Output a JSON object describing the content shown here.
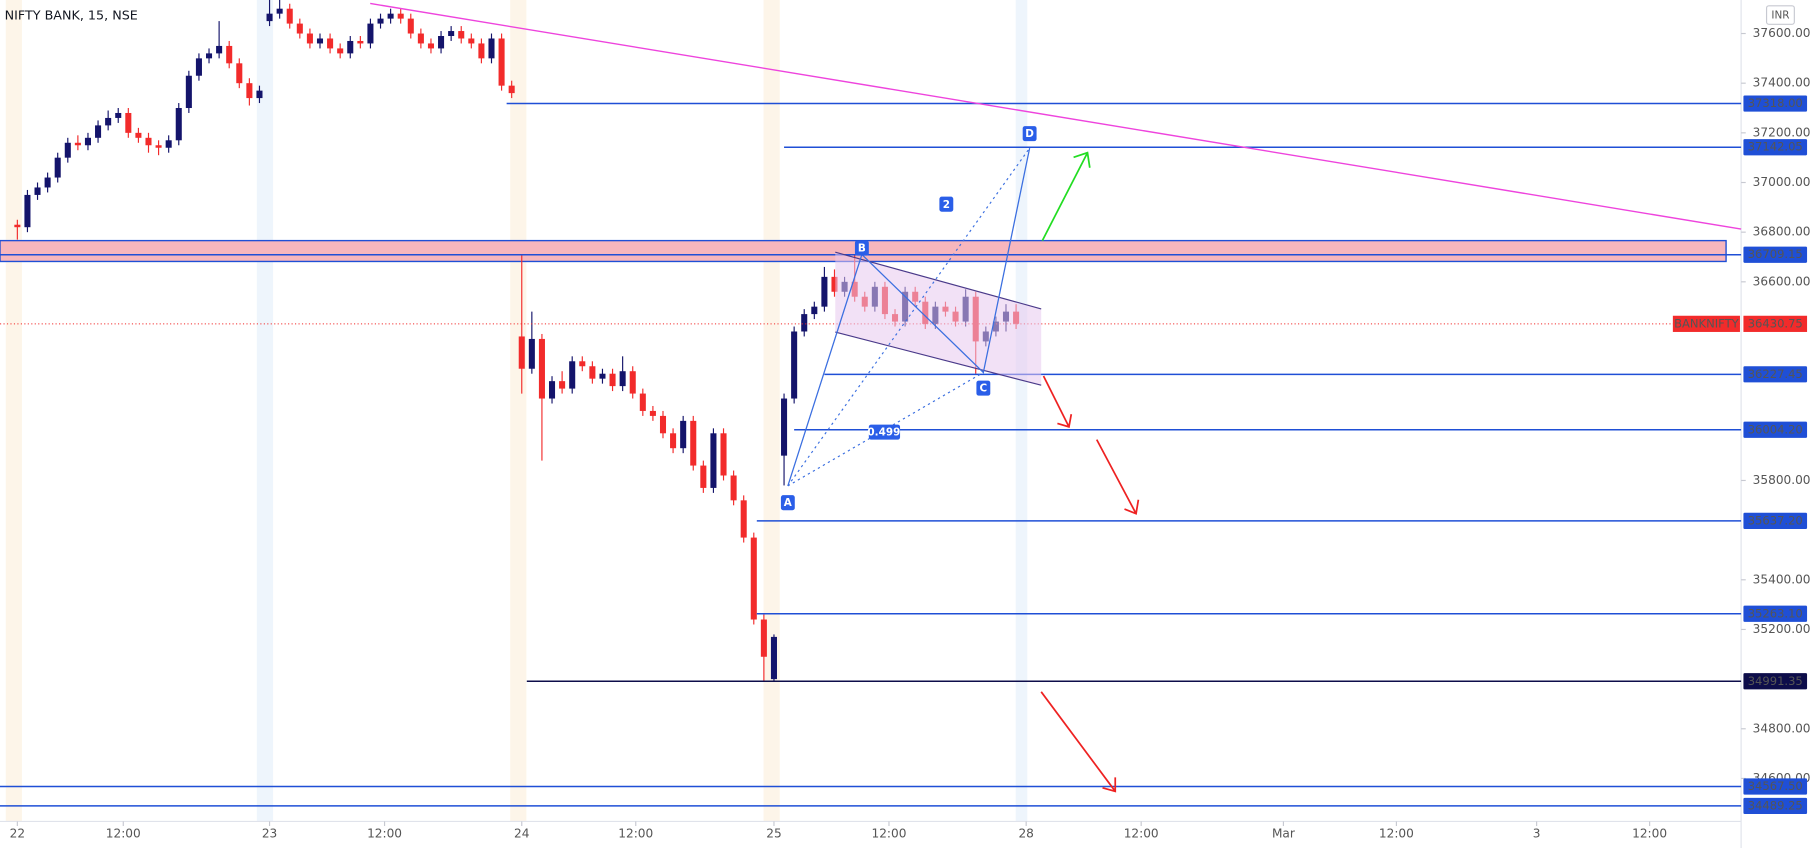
{
  "chart_data": {
    "type": "candlestick",
    "title": "NIFTY BANK, 15, NSE",
    "currency": "INR",
    "up_color": "#14146b",
    "down_color": "#f22b2b",
    "xlim": [
      -1.72,
      170.87
    ],
    "ylim": [
      34427,
      37735
    ],
    "xticks": [
      {
        "value": 0,
        "label": "22"
      },
      {
        "value": 10.5,
        "label": "12:00"
      },
      {
        "value": 25,
        "label": "23"
      },
      {
        "value": 36.4,
        "label": "12:00"
      },
      {
        "value": 50,
        "label": "24"
      },
      {
        "value": 61.3,
        "label": "12:00"
      },
      {
        "value": 75,
        "label": "25"
      },
      {
        "value": 86.4,
        "label": "12:00"
      },
      {
        "value": 100,
        "label": "28"
      },
      {
        "value": 111.4,
        "label": "12:00"
      },
      {
        "value": 125.5,
        "label": "Mar"
      },
      {
        "value": 136.7,
        "label": "12:00"
      },
      {
        "value": 150.6,
        "label": "3"
      },
      {
        "value": 161.8,
        "label": "12:00"
      }
    ],
    "yticks": [
      {
        "value": 37600,
        "label": "37600.00"
      },
      {
        "value": 37400,
        "label": "37400.00"
      },
      {
        "value": 37200,
        "label": "37200.00"
      },
      {
        "value": 37000,
        "label": "37000.00"
      },
      {
        "value": 36800,
        "label": "36800.00"
      },
      {
        "value": 36600,
        "label": "36600.00"
      },
      {
        "value": 35800,
        "label": "35800.00"
      },
      {
        "value": 35400,
        "label": "35400.00"
      },
      {
        "value": 35200,
        "label": "35200.00"
      },
      {
        "value": 34800,
        "label": "34800.00"
      },
      {
        "value": 34600,
        "label": "34600.00"
      }
    ],
    "ohlc": [
      [
        36830,
        36850,
        36770,
        36820
      ],
      [
        36820,
        36970,
        36800,
        36950
      ],
      [
        36950,
        37000,
        36930,
        36980
      ],
      [
        36980,
        37040,
        36960,
        37020
      ],
      [
        37020,
        37120,
        37000,
        37100
      ],
      [
        37100,
        37180,
        37080,
        37160
      ],
      [
        37160,
        37190,
        37130,
        37150
      ],
      [
        37150,
        37200,
        37130,
        37180
      ],
      [
        37180,
        37250,
        37160,
        37230
      ],
      [
        37230,
        37290,
        37210,
        37260
      ],
      [
        37260,
        37300,
        37240,
        37280
      ],
      [
        37280,
        37300,
        37180,
        37200
      ],
      [
        37200,
        37220,
        37160,
        37180
      ],
      [
        37180,
        37200,
        37120,
        37150
      ],
      [
        37150,
        37170,
        37110,
        37140
      ],
      [
        37140,
        37190,
        37120,
        37170
      ],
      [
        37170,
        37320,
        37150,
        37300
      ],
      [
        37300,
        37450,
        37280,
        37430
      ],
      [
        37430,
        37520,
        37410,
        37500
      ],
      [
        37500,
        37540,
        37480,
        37520
      ],
      [
        37520,
        37650,
        37500,
        37550
      ],
      [
        37550,
        37570,
        37460,
        37480
      ],
      [
        37480,
        37500,
        37380,
        37400
      ],
      [
        37400,
        37420,
        37310,
        37340
      ],
      [
        37340,
        37390,
        37320,
        37370
      ],
      [
        37650,
        37740,
        37630,
        37680
      ],
      [
        37680,
        37740,
        37660,
        37700
      ],
      [
        37700,
        37720,
        37620,
        37640
      ],
      [
        37640,
        37660,
        37580,
        37600
      ],
      [
        37600,
        37620,
        37540,
        37560
      ],
      [
        37560,
        37600,
        37540,
        37580
      ],
      [
        37580,
        37600,
        37520,
        37540
      ],
      [
        37540,
        37560,
        37500,
        37520
      ],
      [
        37520,
        37590,
        37500,
        37570
      ],
      [
        37570,
        37590,
        37540,
        37560
      ],
      [
        37560,
        37660,
        37540,
        37640
      ],
      [
        37640,
        37680,
        37620,
        37660
      ],
      [
        37660,
        37700,
        37640,
        37680
      ],
      [
        37680,
        37700,
        37640,
        37660
      ],
      [
        37660,
        37680,
        37580,
        37600
      ],
      [
        37600,
        37620,
        37540,
        37560
      ],
      [
        37560,
        37580,
        37520,
        37540
      ],
      [
        37540,
        37610,
        37520,
        37590
      ],
      [
        37590,
        37630,
        37570,
        37610
      ],
      [
        37610,
        37630,
        37560,
        37580
      ],
      [
        37580,
        37600,
        37540,
        37560
      ],
      [
        37560,
        37580,
        37480,
        37500
      ],
      [
        37500,
        37600,
        37480,
        37580
      ],
      [
        37580,
        37600,
        37370,
        37390
      ],
      [
        37390,
        37410,
        37340,
        37360
      ],
      [
        36380,
        36710,
        36150,
        36250
      ],
      [
        36250,
        36480,
        36230,
        36370
      ],
      [
        36370,
        36390,
        35880,
        36130
      ],
      [
        36130,
        36220,
        36110,
        36200
      ],
      [
        36200,
        36240,
        36150,
        36170
      ],
      [
        36170,
        36300,
        36150,
        36280
      ],
      [
        36280,
        36300,
        36240,
        36260
      ],
      [
        36260,
        36280,
        36190,
        36210
      ],
      [
        36210,
        36250,
        36190,
        36230
      ],
      [
        36230,
        36250,
        36160,
        36180
      ],
      [
        36180,
        36300,
        36160,
        36240
      ],
      [
        36240,
        36260,
        36130,
        36150
      ],
      [
        36150,
        36170,
        36060,
        36080
      ],
      [
        36080,
        36100,
        36040,
        36060
      ],
      [
        36060,
        36080,
        35970,
        35990
      ],
      [
        35990,
        36010,
        35910,
        35930
      ],
      [
        35930,
        36060,
        35910,
        36040
      ],
      [
        36040,
        36060,
        35840,
        35860
      ],
      [
        35860,
        35880,
        35750,
        35770
      ],
      [
        35770,
        36010,
        35750,
        35990
      ],
      [
        35990,
        36010,
        35800,
        35820
      ],
      [
        35820,
        35840,
        35700,
        35720
      ],
      [
        35720,
        35740,
        35550,
        35570
      ],
      [
        35570,
        35590,
        35220,
        35240
      ],
      [
        35240,
        35260,
        34990,
        35090
      ],
      [
        35000,
        35180,
        34990,
        35170
      ],
      [
        35900,
        36150,
        35780,
        36130
      ],
      [
        36130,
        36420,
        36110,
        36400
      ],
      [
        36400,
        36490,
        36380,
        36470
      ],
      [
        36470,
        36520,
        36450,
        36500
      ],
      [
        36500,
        36660,
        36480,
        36620
      ],
      [
        36620,
        36650,
        36540,
        36560
      ],
      [
        36560,
        36620,
        36540,
        36600
      ],
      [
        36600,
        36710,
        36520,
        36540
      ],
      [
        36540,
        36560,
        36480,
        36500
      ],
      [
        36500,
        36600,
        36480,
        36580
      ],
      [
        36580,
        36600,
        36450,
        36470
      ],
      [
        36470,
        36490,
        36420,
        36440
      ],
      [
        36440,
        36580,
        36420,
        36560
      ],
      [
        36560,
        36580,
        36500,
        36520
      ],
      [
        36520,
        36540,
        36410,
        36430
      ],
      [
        36430,
        36520,
        36410,
        36500
      ],
      [
        36500,
        36520,
        36460,
        36480
      ],
      [
        36480,
        36500,
        36420,
        36440
      ],
      [
        36440,
        36570,
        36420,
        36540
      ],
      [
        36540,
        36560,
        36230,
        36360
      ],
      [
        36360,
        36420,
        36340,
        36400
      ],
      [
        36400,
        36460,
        36380,
        36440
      ],
      [
        36440,
        36510,
        36400,
        36480
      ],
      [
        36480,
        36510,
        36410,
        36430.75
      ]
    ],
    "levels": [
      {
        "value": 37318.0,
        "label": "37318.00",
        "from": 48.5,
        "color": "#1f4fd6"
      },
      {
        "value": 37142.05,
        "label": "37142.05",
        "from": 76,
        "color": "#1f4fd6"
      },
      {
        "value": 36709.15,
        "label": "36709.15",
        "from": -1.72,
        "color": "#1f4fd6"
      },
      {
        "value": 36227.45,
        "label": "36227.45",
        "from": 80,
        "color": "#1f4fd6"
      },
      {
        "value": 36004.2,
        "label": "36004.20",
        "from": 77,
        "color": "#1f4fd6"
      },
      {
        "value": 35637.2,
        "label": "35637.20",
        "from": 73.3,
        "color": "#1f4fd6"
      },
      {
        "value": 35263.1,
        "label": "35263.10",
        "from": 73.3,
        "color": "#1f4fd6"
      },
      {
        "value": 34991.35,
        "label": "34991.35",
        "from": 50.5,
        "color": "#0d0d4a"
      },
      {
        "value": 34567.5,
        "label": "34567.50",
        "from": -1.72,
        "color": "#1f4fd6"
      },
      {
        "value": 34489.25,
        "label": "34489.25",
        "from": -1.72,
        "color": "#1f4fd6"
      }
    ],
    "zone": [
      36682,
      36766
    ],
    "last_price": {
      "name": "BANKNIFTY",
      "value": 36430.75,
      "label": "36430.75",
      "color": "#f22b2b"
    },
    "pattern_points": [
      "A",
      "B",
      "C",
      "D"
    ],
    "leg_label": "2",
    "ratio_label": "0.499"
  }
}
